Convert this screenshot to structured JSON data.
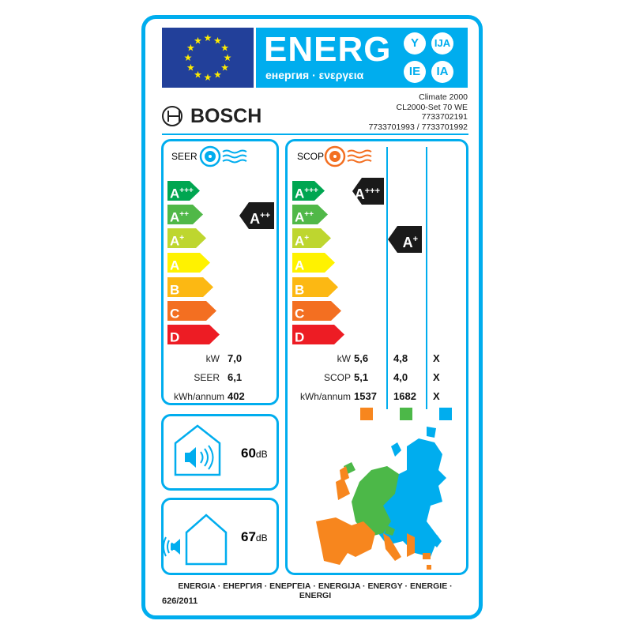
{
  "header": {
    "energy": "ENERG",
    "subtitle": "енергия · ενεργεια",
    "suffixes": [
      "Y",
      "IJA",
      "IE",
      "IA"
    ]
  },
  "brand": "BOSCH",
  "model": {
    "line1": "Climate 2000",
    "line2": "CL2000-Set 70 WE",
    "line3": "7733702191",
    "line4": "7733701993 / 7733701992"
  },
  "classes": [
    {
      "base": "A",
      "sup": "+++",
      "color": "#00a651"
    },
    {
      "base": "A",
      "sup": "++",
      "color": "#50b848"
    },
    {
      "base": "A",
      "sup": "+",
      "color": "#bed62f"
    },
    {
      "base": "A",
      "sup": "",
      "color": "#fff200"
    },
    {
      "base": "B",
      "sup": "",
      "color": "#fcb813"
    },
    {
      "base": "C",
      "sup": "",
      "color": "#f36f21"
    },
    {
      "base": "D",
      "sup": "",
      "color": "#ed1c24"
    }
  ],
  "cooling": {
    "label": "SEER",
    "rating": {
      "base": "A",
      "sup": "++"
    },
    "kw_label": "kW",
    "kw": "7,0",
    "seer_label": "SEER",
    "seer": "6,1",
    "annual_label": "kWh/annum",
    "annual": "402"
  },
  "heating": {
    "label": "SCOP",
    "ratings": [
      {
        "base": "A",
        "sup": "+++"
      },
      {
        "base": "A",
        "sup": "+"
      }
    ],
    "kw_label": "kW",
    "scop_label": "SCOP",
    "annual_label": "kWh/annum",
    "columns": [
      {
        "kw": "5,6",
        "scop": "5,1",
        "annual": "1537",
        "color": "#f7861e"
      },
      {
        "kw": "4,8",
        "scop": "4,0",
        "annual": "1682",
        "color": "#4cb848"
      },
      {
        "kw": "X",
        "scop": "X",
        "annual": "X",
        "color": "#00adee"
      }
    ]
  },
  "noise": {
    "indoor": "60",
    "outdoor": "67",
    "unit": "dB"
  },
  "footer": {
    "languages": "ENERGIA · ЕНЕРГИЯ · ΕΝΕΡΓΕΙΑ · ENERGIJA · ENERGY · ENERGIE · ENERGI",
    "regulation": "626/2011"
  }
}
